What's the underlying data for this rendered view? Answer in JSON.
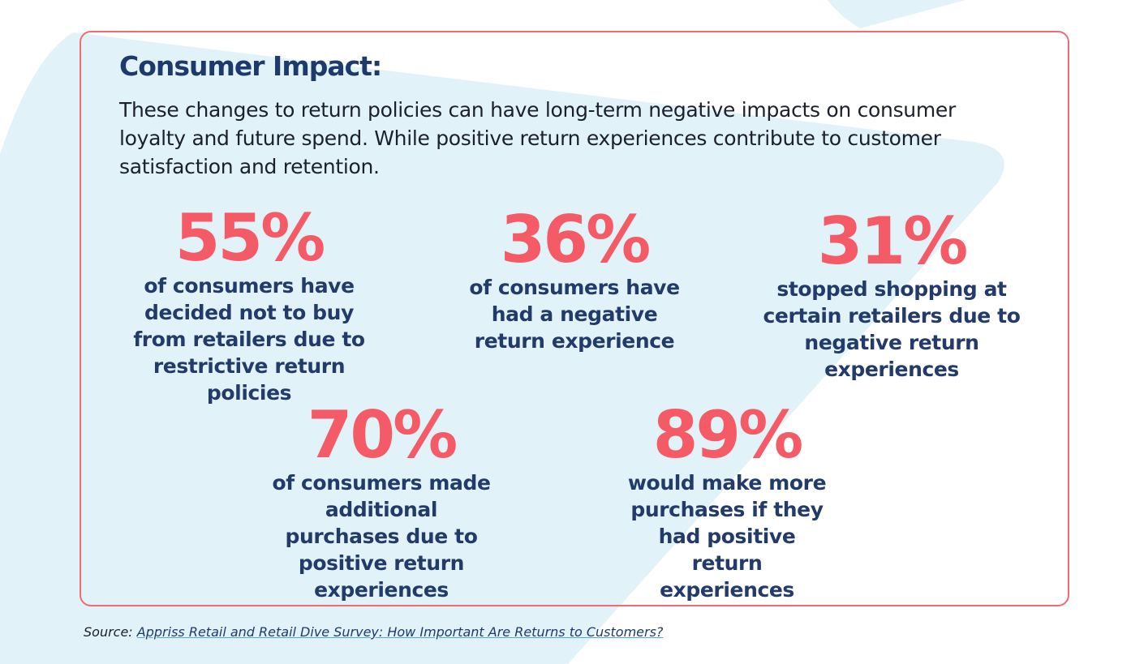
{
  "heading": "Consumer Impact:",
  "intro": "These changes to return policies can have long-term negative impacts on consumer loyalty and future spend. While positive return experiences contribute to customer satisfaction and retention.",
  "stats": [
    {
      "value": "55%",
      "label": "of consumers have decided not to buy from retailers due to restrictive return policies"
    },
    {
      "value": "36%",
      "label": "of consumers have had a negative return experience"
    },
    {
      "value": "31%",
      "label": "stopped shopping at certain retailers due to negative return experiences"
    },
    {
      "value": "70%",
      "label": "of consumers made additional purchases due to positive return experiences"
    },
    {
      "value": "89%",
      "label": "would make more purchases if they had positive return experiences"
    }
  ],
  "source": {
    "prefix": "Source:",
    "link_text": "Appriss Retail and Retail Dive Survey: How Important Are Returns to Customers?"
  },
  "colors": {
    "accent": "#f45b66",
    "heading": "#1e3a6d",
    "label": "#223b6b",
    "border": "#f26b72",
    "background_shape": "#e1f3f8"
  }
}
